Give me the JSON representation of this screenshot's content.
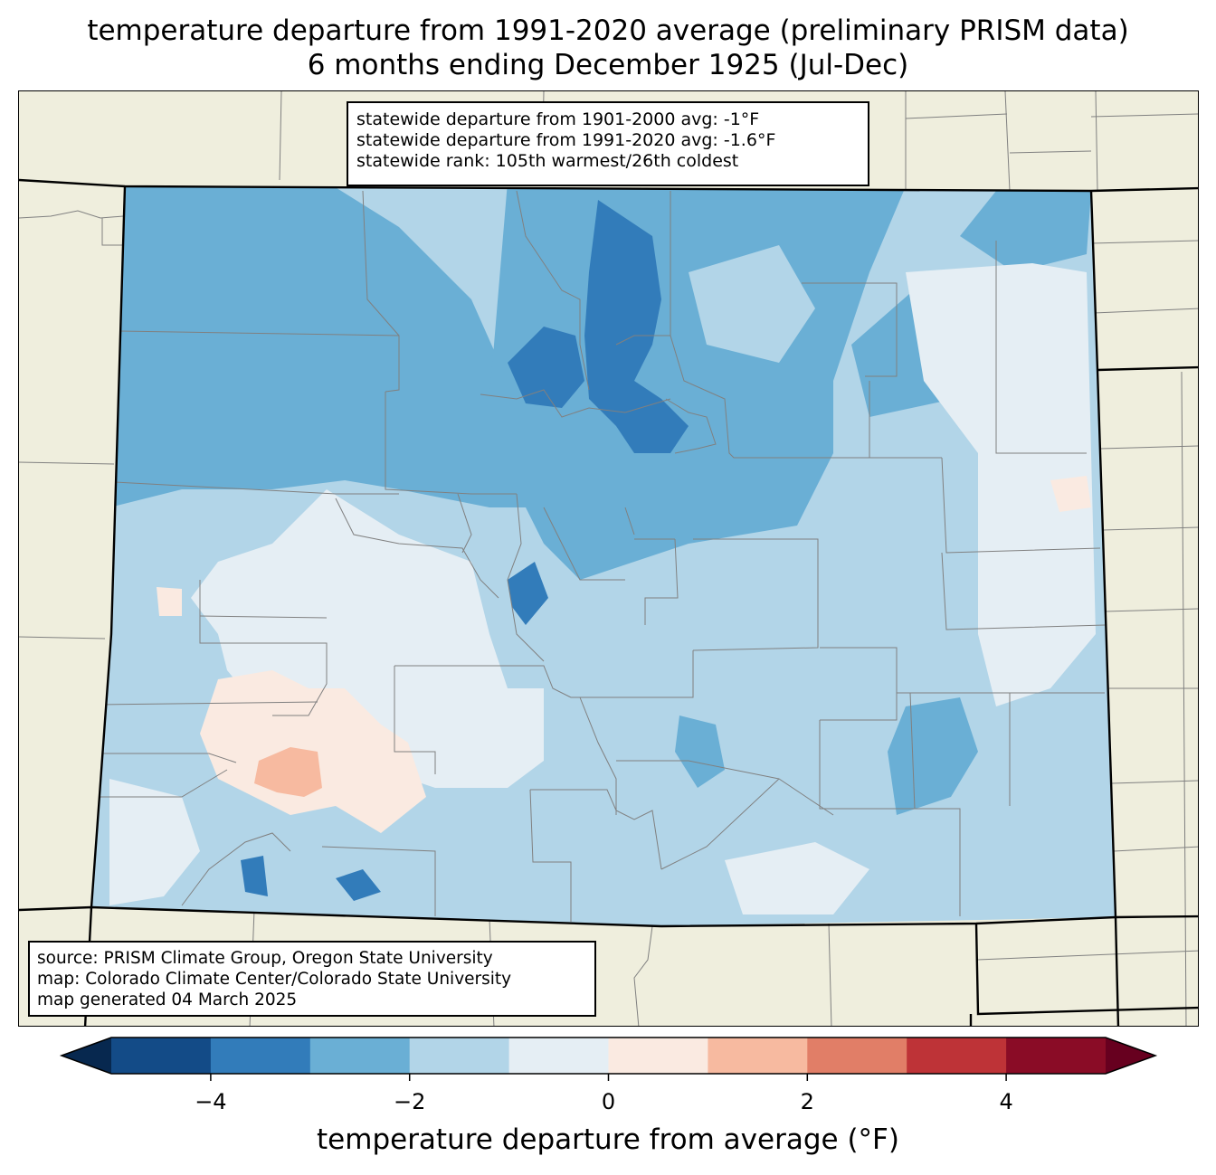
{
  "title": {
    "line1": "temperature departure from 1991-2020 average (preliminary PRISM data)",
    "line2": "6 months ending December 1925 (Jul-Dec)"
  },
  "stats": {
    "line1": "statewide departure from 1901-2000 avg: -1°F",
    "line2": "statewide departure from 1991-2020 avg: -1.6°F",
    "line3": "statewide rank: 105th warmest/26th coldest"
  },
  "source": {
    "line1": "source: PRISM Climate Group, Oregon State University",
    "line2": "map: Colorado Climate Center/Colorado State University",
    "line3": "map generated 04 March 2025"
  },
  "colorbar": {
    "label": "temperature departure from average (°F)",
    "ticks": [
      "−4",
      "−2",
      "0",
      "2",
      "4"
    ],
    "tick_values": [
      -4,
      -2,
      0,
      2,
      4
    ],
    "min": -5,
    "max": 5,
    "colors": [
      "#134b87",
      "#327cba",
      "#6aafd5",
      "#b2d5e8",
      "#e5eef4",
      "#faeae1",
      "#f7baa0",
      "#e17e67",
      "#be3337",
      "#8a0c26"
    ],
    "under_color": "#07284f",
    "over_color": "#67001f"
  },
  "map_colors": {
    "land": "#efeedd",
    "state_border": "#000000",
    "county_border": "#808080"
  }
}
